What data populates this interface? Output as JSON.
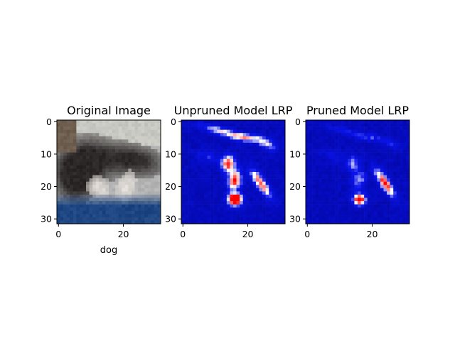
{
  "panels": [
    {
      "title": "Original Image",
      "xlabel": "dog",
      "xticks": [
        "0",
        "20"
      ],
      "yticks": [
        "0",
        "10",
        "20",
        "30"
      ],
      "kind": "photo"
    },
    {
      "title": "Unpruned Model LRP",
      "xlabel": "",
      "xticks": [
        "0",
        "20"
      ],
      "yticks": [
        "0",
        "10",
        "20",
        "30"
      ],
      "kind": "heatmap"
    },
    {
      "title": "Pruned Model LRP",
      "xlabel": "",
      "xticks": [
        "0",
        "20"
      ],
      "yticks": [
        "0",
        "10",
        "20",
        "30"
      ],
      "kind": "heatmap"
    }
  ],
  "colors": {
    "heatmap_low": "#00007f",
    "heatmap_mid": "#ffffff",
    "heatmap_high": "#ff0000",
    "background": "#ffffff"
  }
}
